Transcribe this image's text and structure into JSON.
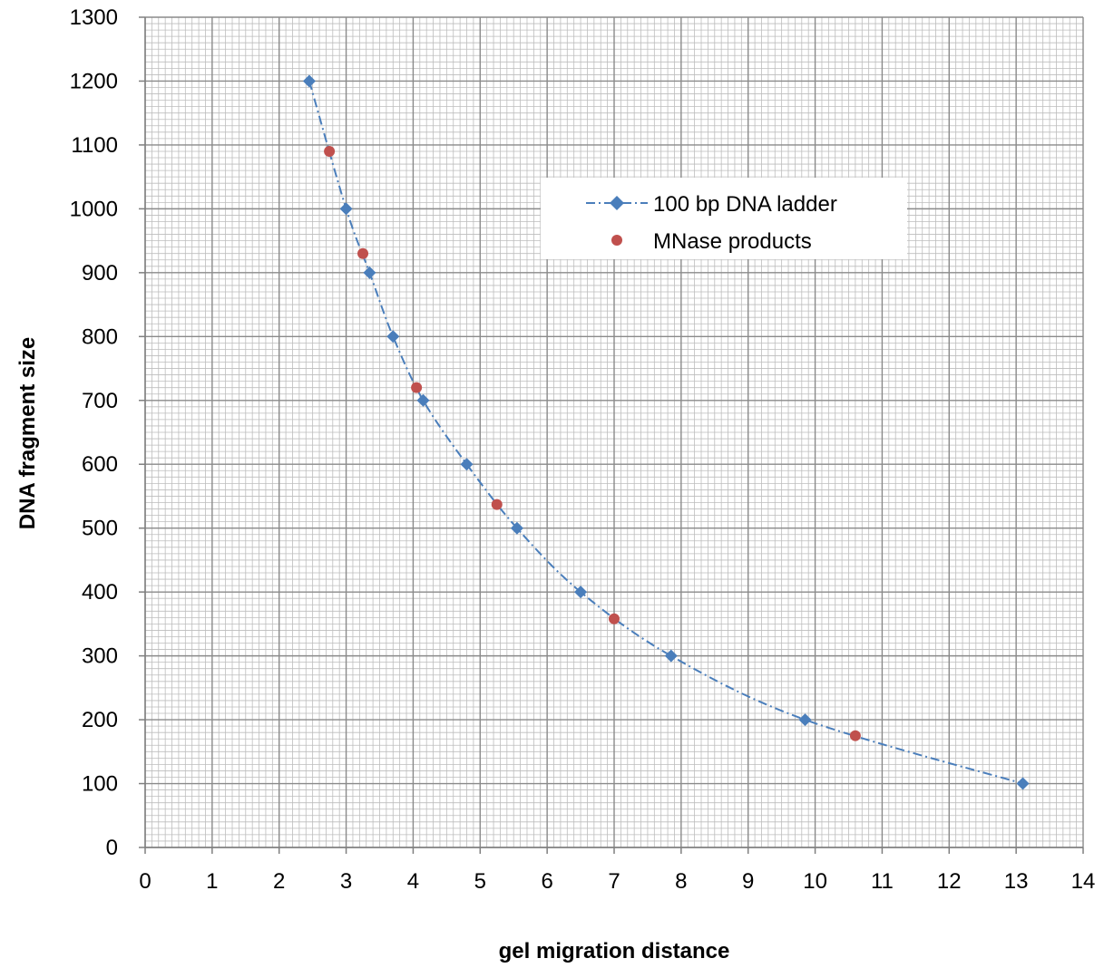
{
  "chart_data": {
    "type": "scatter",
    "xlabel": "gel migration distance",
    "ylabel": "DNA fragment size",
    "xlim": [
      0,
      14
    ],
    "ylim": [
      0,
      1300
    ],
    "x_ticks": [
      "0",
      "1",
      "2",
      "3",
      "4",
      "5",
      "6",
      "7",
      "8",
      "9",
      "10",
      "11",
      "12",
      "13",
      "14"
    ],
    "y_ticks": [
      "0",
      "100",
      "200",
      "300",
      "400",
      "500",
      "600",
      "700",
      "800",
      "900",
      "1000",
      "1100",
      "1200",
      "1300"
    ],
    "grid": true,
    "legend_position": "upper-right",
    "series": [
      {
        "name": "100 bp DNA ladder",
        "marker": "diamond",
        "line": "dash-dot",
        "color": "#4a7ebb",
        "x": [
          2.45,
          3.0,
          3.35,
          3.7,
          4.15,
          4.8,
          5.55,
          6.5,
          7.85,
          9.85,
          13.1
        ],
        "y": [
          1200,
          1000,
          900,
          800,
          700,
          600,
          500,
          400,
          300,
          200,
          100
        ]
      },
      {
        "name": "MNase products",
        "marker": "circle",
        "line": "none",
        "color": "#c0504d",
        "x": [
          2.75,
          3.25,
          4.05,
          5.25,
          7.0,
          10.6
        ],
        "y": [
          1090,
          930,
          720,
          537,
          358,
          175
        ]
      }
    ]
  }
}
